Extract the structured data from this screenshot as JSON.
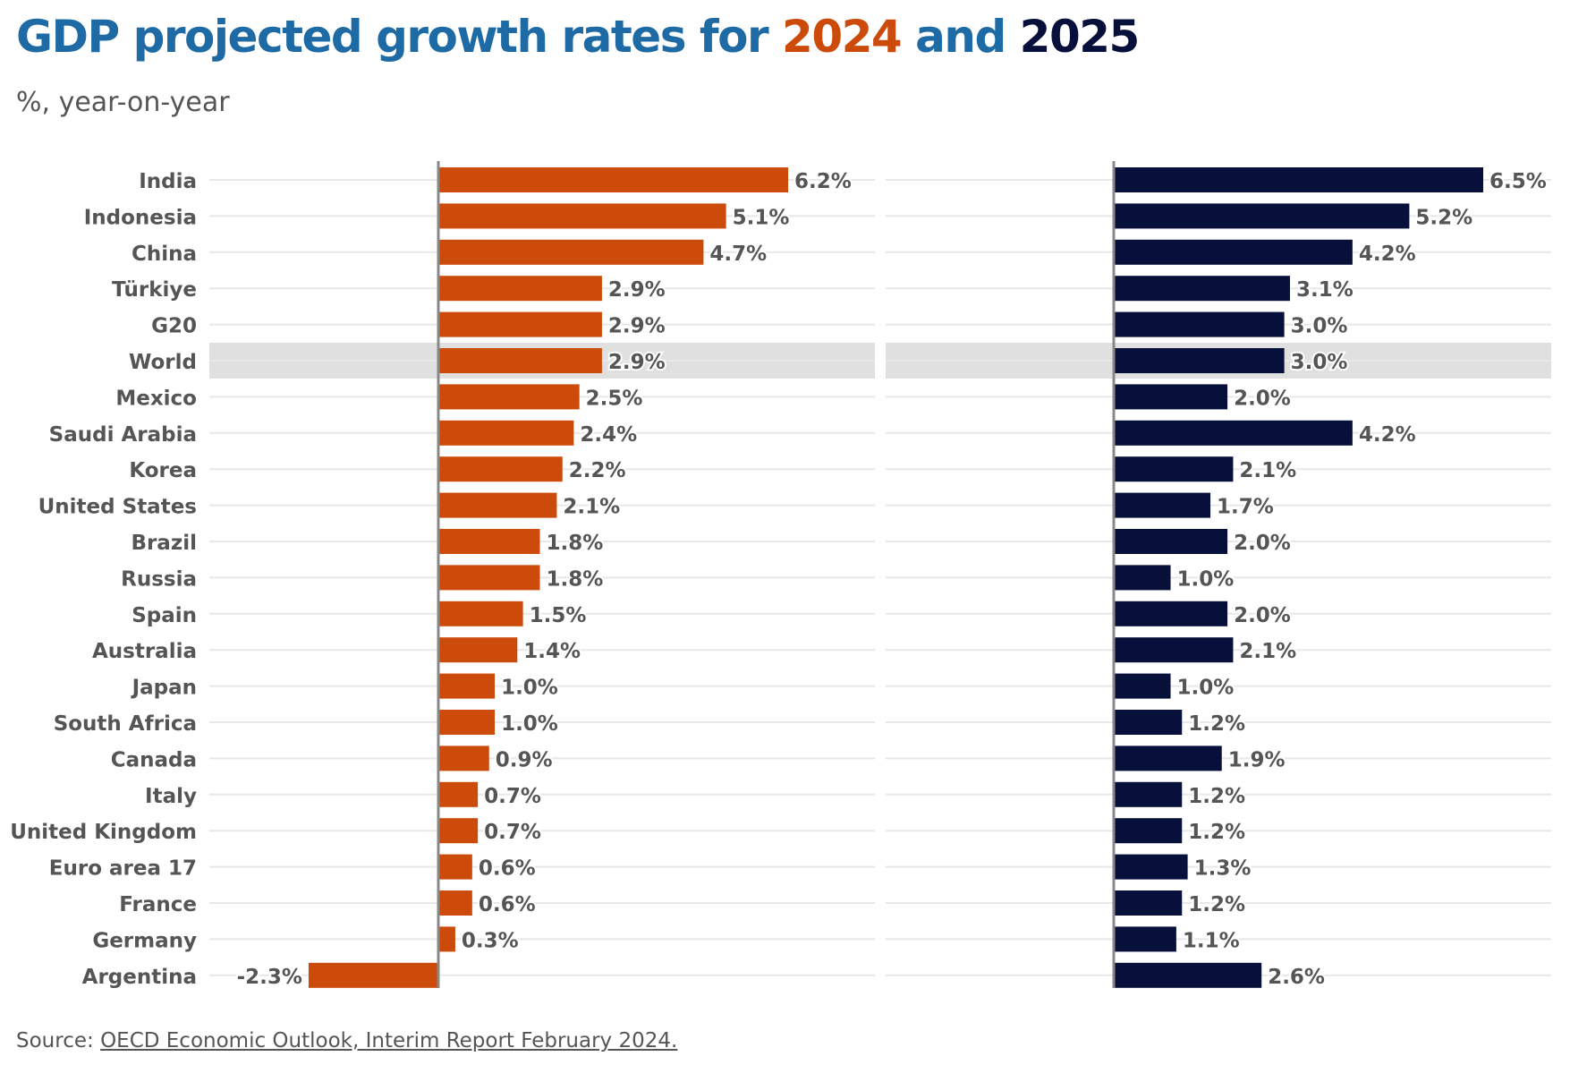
{
  "header": {
    "title_prefix": "GDP projected growth rates for ",
    "title_year1": "2024",
    "title_mid": " and ",
    "title_year2": "2025",
    "subtitle": "%, year-on-year"
  },
  "footer": {
    "source_label": "Source: ",
    "source_link_text": "OECD Economic Outlook, Interim Report February 2024."
  },
  "colors": {
    "title": "#1d6aa5",
    "year_2024": "#cc4a0a",
    "year_2025": "#07103a",
    "highlight_row": "#e0e0e0",
    "axis": "#888888",
    "label": "#555555"
  },
  "chart_data": {
    "type": "bar",
    "orientation": "horizontal",
    "categories": [
      "India",
      "Indonesia",
      "China",
      "Türkiye",
      "G20",
      "World",
      "Mexico",
      "Saudi Arabia",
      "Korea",
      "United States",
      "Brazil",
      "Russia",
      "Spain",
      "Australia",
      "Japan",
      "South Africa",
      "Canada",
      "Italy",
      "United Kingdom",
      "Euro area 17",
      "France",
      "Germany",
      "Argentina"
    ],
    "highlight": "World",
    "series": [
      {
        "name": "2024",
        "color": "#cc4a0a",
        "values": [
          6.2,
          5.1,
          4.7,
          2.9,
          2.9,
          2.9,
          2.5,
          2.4,
          2.2,
          2.1,
          1.8,
          1.8,
          1.5,
          1.4,
          1.0,
          1.0,
          0.9,
          0.7,
          0.7,
          0.6,
          0.6,
          0.3,
          -2.3
        ],
        "labels": [
          "6.2%",
          "5.1%",
          "4.7%",
          "2.9%",
          "2.9%",
          "2.9%",
          "2.5%",
          "2.4%",
          "2.2%",
          "2.1%",
          "1.8%",
          "1.8%",
          "1.5%",
          "1.4%",
          "1.0%",
          "1.0%",
          "0.9%",
          "0.7%",
          "0.7%",
          "0.6%",
          "0.6%",
          "0.3%",
          "-2.3%"
        ]
      },
      {
        "name": "2025",
        "color": "#07103a",
        "values": [
          6.5,
          5.2,
          4.2,
          3.1,
          3.0,
          3.0,
          2.0,
          4.2,
          2.1,
          1.7,
          2.0,
          1.0,
          2.0,
          2.1,
          1.0,
          1.2,
          1.9,
          1.2,
          1.2,
          1.3,
          1.2,
          1.1,
          2.6
        ],
        "labels": [
          "6.5%",
          "5.2%",
          "4.2%",
          "3.1%",
          "3.0%",
          "3.0%",
          "2.0%",
          "4.2%",
          "2.1%",
          "1.7%",
          "2.0%",
          "1.0%",
          "2.0%",
          "2.1%",
          "1.0%",
          "1.2%",
          "1.9%",
          "1.2%",
          "1.2%",
          "1.3%",
          "1.2%",
          "1.1%",
          "2.6%"
        ]
      }
    ],
    "xlim_2024": [
      -2.3,
      6.2
    ],
    "xlim_2025": [
      0,
      6.5
    ],
    "grid": "horizontal row lines",
    "legend": "none (series identified by colored years in title)"
  }
}
